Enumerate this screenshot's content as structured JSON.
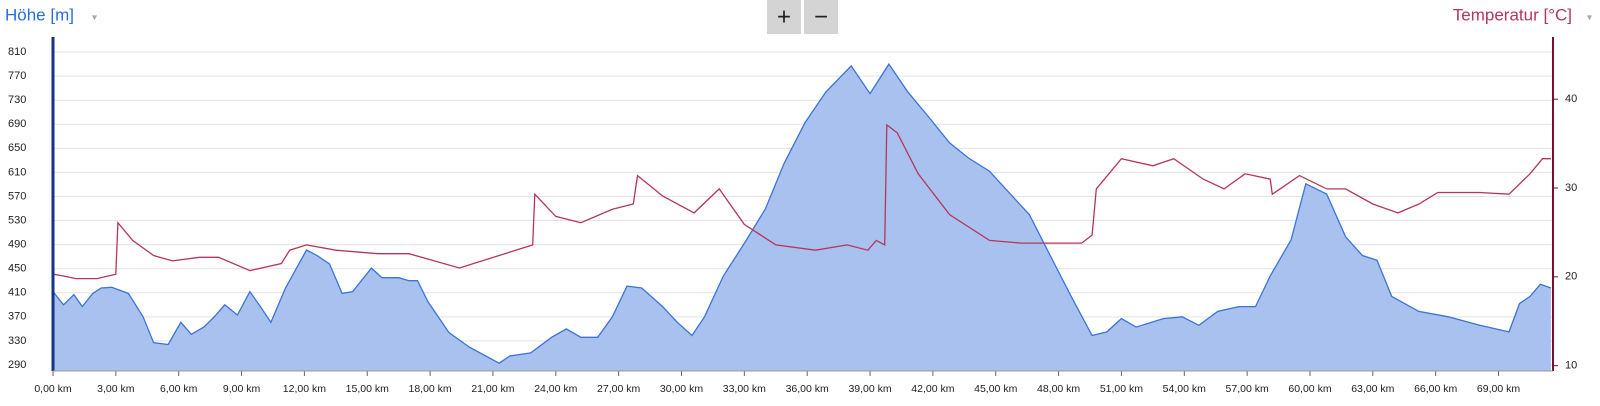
{
  "chart_data": {
    "type": "area",
    "zoom_buttons": [
      "+",
      "−"
    ],
    "grid": true,
    "xlim": [
      0,
      71.6
    ],
    "xticks": [
      {
        "value": 0,
        "label": "0,00 km"
      },
      {
        "value": 3,
        "label": "3,00 km"
      },
      {
        "value": 6,
        "label": "6,00 km"
      },
      {
        "value": 9,
        "label": "9,00 km"
      },
      {
        "value": 12,
        "label": "12,00 km"
      },
      {
        "value": 15,
        "label": "15,00 km"
      },
      {
        "value": 18,
        "label": "18,00 km"
      },
      {
        "value": 21,
        "label": "21,00 km"
      },
      {
        "value": 24,
        "label": "24,00 km"
      },
      {
        "value": 27,
        "label": "27,00 km"
      },
      {
        "value": 30,
        "label": "30,00 km"
      },
      {
        "value": 33,
        "label": "33,00 km"
      },
      {
        "value": 36,
        "label": "36,00 km"
      },
      {
        "value": 39,
        "label": "39,00 km"
      },
      {
        "value": 42,
        "label": "42,00 km"
      },
      {
        "value": 45,
        "label": "45,00 km"
      },
      {
        "value": 48,
        "label": "48,00 km"
      },
      {
        "value": 51,
        "label": "51,00 km"
      },
      {
        "value": 54,
        "label": "54,00 km"
      },
      {
        "value": 57,
        "label": "57,00 km"
      },
      {
        "value": 60,
        "label": "60,00 km"
      },
      {
        "value": 63,
        "label": "63,00 km"
      },
      {
        "value": 66,
        "label": "66,00 km"
      },
      {
        "value": 69,
        "label": "69,00 km"
      }
    ],
    "ylim": [
      280,
      835
    ],
    "yticks": [
      290,
      330,
      370,
      410,
      450,
      490,
      530,
      570,
      610,
      650,
      690,
      730,
      770,
      810
    ],
    "y2lim": [
      9.4,
      47
    ],
    "y2ticks": [
      10,
      20,
      30,
      40
    ],
    "series": [
      {
        "name": "Höhe [m]",
        "color": "#3a74d8",
        "fill": "#a9c1ef",
        "axis": "y",
        "x": [
          0,
          0.5,
          1.0,
          1.4,
          1.9,
          2.3,
          2.8,
          3.6,
          4.3,
          4.8,
          5.5,
          6.1,
          6.6,
          7.2,
          7.7,
          8.2,
          8.8,
          9.4,
          9.9,
          10.4,
          11.1,
          12.1,
          12.6,
          13.2,
          13.8,
          14.3,
          15.2,
          15.7,
          16.5,
          17.0,
          17.4,
          17.9,
          18.9,
          19.9,
          21.3,
          21.8,
          22.8,
          23.8,
          24.5,
          25.2,
          26.0,
          26.7,
          27.4,
          28.1,
          29.1,
          29.8,
          30.5,
          31.1,
          32.0,
          33.0,
          34.0,
          34.9,
          35.9,
          36.9,
          38.1,
          39.0,
          39.9,
          40.8,
          41.8,
          42.8,
          43.7,
          44.7,
          45.7,
          46.6,
          47.6,
          48.6,
          49.6,
          50.3,
          51.0,
          51.7,
          53.0,
          53.9,
          54.7,
          55.6,
          56.6,
          57.4,
          58.1,
          59.1,
          59.8,
          60.8,
          61.7,
          62.5,
          63.2,
          63.9,
          65.2,
          66.6,
          68.1,
          69.5,
          70.0,
          70.5,
          71.0,
          71.5
        ],
        "values": [
          412,
          390,
          407,
          387,
          409,
          418,
          419,
          409,
          370,
          327,
          324,
          361,
          341,
          353,
          370,
          390,
          373,
          412,
          387,
          361,
          418,
          481,
          472,
          458,
          409,
          412,
          451,
          435,
          435,
          430,
          430,
          395,
          344,
          319,
          293,
          305,
          310,
          336,
          350,
          336,
          336,
          370,
          421,
          418,
          387,
          361,
          339,
          370,
          438,
          492,
          549,
          625,
          693,
          744,
          787,
          741,
          790,
          744,
          702,
          659,
          634,
          612,
          574,
          540,
          472,
          404,
          339,
          345,
          367,
          353,
          367,
          370,
          356,
          379,
          387,
          387,
          438,
          498,
          591,
          574,
          503,
          472,
          464,
          404,
          379,
          370,
          356,
          345,
          392,
          404,
          424,
          418
        ]
      },
      {
        "name": "Temperatur [°C]",
        "color": "#b5365a",
        "axis": "y2",
        "x": [
          0,
          0.5,
          1.1,
          2.1,
          3.0,
          3.1,
          3.8,
          4.8,
          5.7,
          7.0,
          7.9,
          9.4,
          10.9,
          11.3,
          12.1,
          13.5,
          15.5,
          17.0,
          19.4,
          21.3,
          22.9,
          23.0,
          24.0,
          25.2,
          26.7,
          27.7,
          27.9,
          29.1,
          30.6,
          31.8,
          33.0,
          34.5,
          36.4,
          37.9,
          38.9,
          39.3,
          39.7,
          39.8,
          40.3,
          41.3,
          42.8,
          44.7,
          46.2,
          49.1,
          49.6,
          49.8,
          51.0,
          52.5,
          53.5,
          54.9,
          55.9,
          56.9,
          58.1,
          58.2,
          59.5,
          60.8,
          61.7,
          63.0,
          64.2,
          65.2,
          66.1,
          68.1,
          69.5,
          70.5,
          71.1,
          71.5
        ],
        "values": [
          20.3,
          20.1,
          19.8,
          19.8,
          20.3,
          26.1,
          24.1,
          22.4,
          21.8,
          22.2,
          22.2,
          20.7,
          21.5,
          23.0,
          23.6,
          23.0,
          22.6,
          22.6,
          21.0,
          22.4,
          23.6,
          29.3,
          26.8,
          26.1,
          27.6,
          28.2,
          31.4,
          29.1,
          27.2,
          29.9,
          25.9,
          23.6,
          23.0,
          23.6,
          23.0,
          24.1,
          23.6,
          37.1,
          36.2,
          31.6,
          27.0,
          24.1,
          23.8,
          23.8,
          24.7,
          29.9,
          33.3,
          32.5,
          33.3,
          31.0,
          29.9,
          31.6,
          31.0,
          29.3,
          31.4,
          29.9,
          29.9,
          28.2,
          27.2,
          28.2,
          29.5,
          29.5,
          29.3,
          31.6,
          33.3,
          33.3
        ]
      }
    ]
  }
}
